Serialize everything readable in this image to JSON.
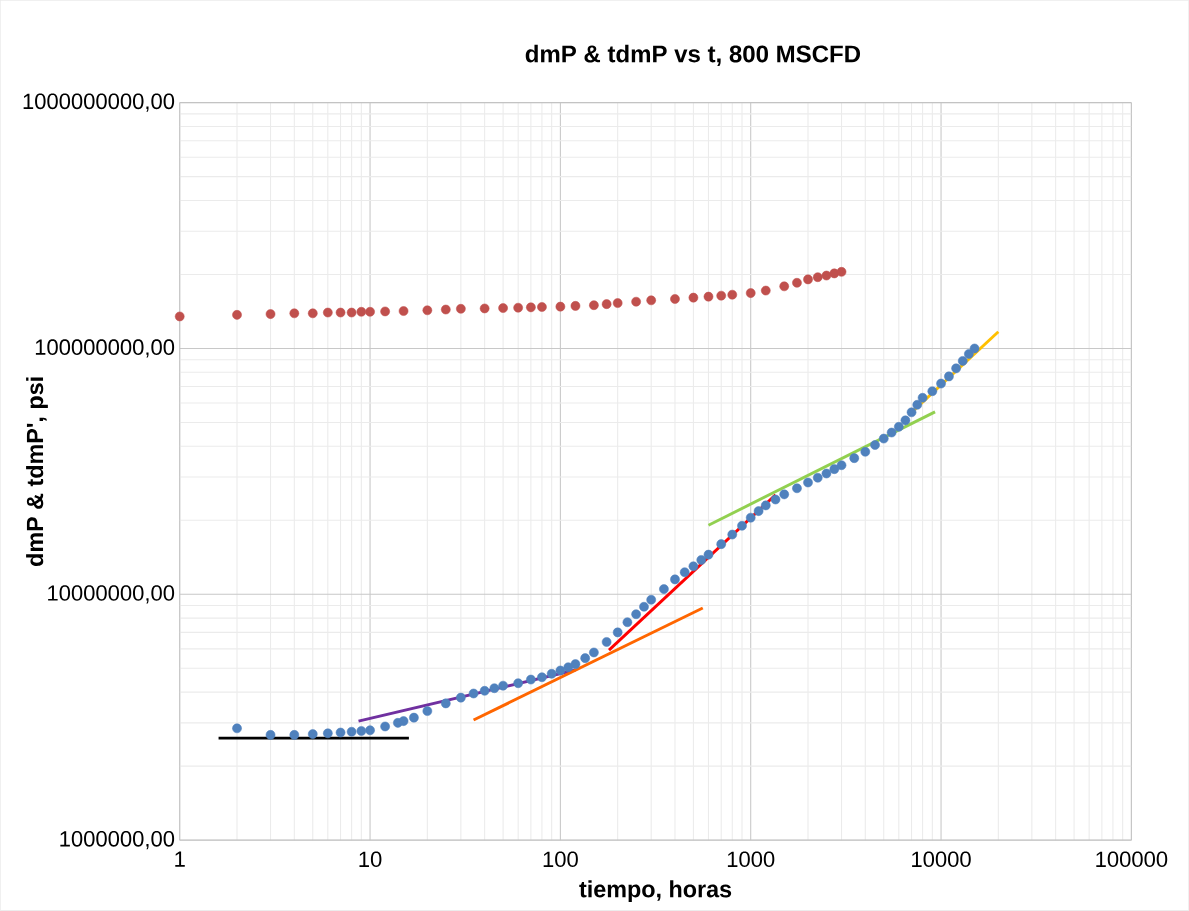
{
  "chart_data": {
    "type": "scatter",
    "title": "dmP & tdmP vs t, 800 MSCFD",
    "xlabel": "tiempo, horas",
    "ylabel": "dmP & tdmP', psi",
    "log": "xy",
    "grid": true,
    "xlim": [
      1,
      100000
    ],
    "ylim": [
      1000000,
      1000000000
    ],
    "xticks": [
      1,
      10,
      100,
      1000,
      10000,
      100000
    ],
    "yticks": [
      {
        "value": 1000000,
        "label": "1000000,00"
      },
      {
        "value": 10000000,
        "label": "10000000,00"
      },
      {
        "value": 100000000,
        "label": "100000000,00"
      },
      {
        "value": 1000000000,
        "label": "1000000000,00"
      }
    ],
    "series": [
      {
        "type": "scatter",
        "marker": "circle",
        "color": "#c0504d",
        "x": [
          1,
          2,
          3,
          4,
          5,
          6,
          7,
          8,
          9,
          10,
          12,
          15,
          20,
          25,
          30,
          40,
          50,
          60,
          70,
          80,
          100,
          120,
          150,
          175,
          200,
          250,
          300,
          400,
          500,
          600,
          700,
          800,
          1000,
          1200,
          1500,
          1750,
          2000,
          2250,
          2500,
          2750,
          3000
        ],
        "values": [
          135000000,
          137000000,
          138000000,
          139000000,
          139000000,
          140000000,
          140000000,
          140000000,
          141000000,
          141000000,
          141500000,
          142000000,
          143000000,
          144000000,
          145000000,
          145500000,
          146000000,
          146500000,
          147000000,
          147500000,
          148000000,
          149000000,
          150000000,
          151500000,
          153000000,
          155000000,
          157000000,
          159000000,
          161000000,
          162500000,
          164000000,
          165500000,
          168000000,
          172000000,
          179000000,
          185000000,
          191000000,
          195000000,
          198000000,
          202000000,
          205000000
        ]
      },
      {
        "type": "scatter",
        "marker": "circle",
        "color": "#4f81bd",
        "x": [
          2,
          3,
          4,
          5,
          6,
          7,
          8,
          9,
          10,
          12,
          14,
          15,
          17,
          20,
          25,
          30,
          35,
          40,
          45,
          50,
          60,
          70,
          80,
          90,
          100,
          110,
          120,
          135,
          150,
          175,
          200,
          225,
          250,
          275,
          300,
          350,
          400,
          450,
          500,
          550,
          600,
          700,
          800,
          900,
          1000,
          1100,
          1200,
          1350,
          1500,
          1750,
          2000,
          2250,
          2500,
          2750,
          3000,
          3500,
          4000,
          4500,
          5000,
          5500,
          6000,
          6500,
          7000,
          7500,
          8000,
          9000,
          10000,
          11000,
          12000,
          13000,
          14000,
          15000
        ],
        "values": [
          2850000,
          2680000,
          2680000,
          2700000,
          2720000,
          2740000,
          2760000,
          2780000,
          2800000,
          2900000,
          3000000,
          3050000,
          3150000,
          3350000,
          3600000,
          3800000,
          3950000,
          4050000,
          4150000,
          4250000,
          4350000,
          4500000,
          4600000,
          4750000,
          4900000,
          5050000,
          5200000,
          5500000,
          5800000,
          6400000,
          7000000,
          7700000,
          8300000,
          8900000,
          9500000,
          10500000,
          11500000,
          12300000,
          13000000,
          13800000,
          14500000,
          16000000,
          17500000,
          19000000,
          20500000,
          21800000,
          23000000,
          24300000,
          25500000,
          27000000,
          28500000,
          29800000,
          31000000,
          32300000,
          33500000,
          35800000,
          38000000,
          40500000,
          43000000,
          45500000,
          48000000,
          51000000,
          55000000,
          59000000,
          63000000,
          67000000,
          72000000,
          77000000,
          83000000,
          89000000,
          95000000,
          100000000
        ]
      },
      {
        "type": "line",
        "marker": "none",
        "color": "#000000",
        "x": [
          1.6,
          16
        ],
        "values": [
          2600000,
          2600000
        ]
      },
      {
        "type": "line",
        "marker": "none",
        "color": "#7030a0",
        "x": [
          8.7,
          120
        ],
        "values": [
          3050000,
          4920000
        ]
      },
      {
        "type": "line",
        "marker": "none",
        "color": "#ff6600",
        "x": [
          35,
          560
        ],
        "values": [
          3080000,
          8800000
        ]
      },
      {
        "type": "line",
        "marker": "none",
        "color": "#ff0000",
        "x": [
          180,
          1350
        ],
        "values": [
          5930000,
          25400000
        ]
      },
      {
        "type": "line",
        "marker": "none",
        "color": "#92d050",
        "x": [
          600,
          9300
        ],
        "values": [
          19100000,
          55200000
        ]
      },
      {
        "type": "line",
        "marker": "none",
        "color": "#ffc000",
        "x": [
          7000,
          20000
        ],
        "values": [
          55000000,
          117000000
        ]
      }
    ]
  }
}
